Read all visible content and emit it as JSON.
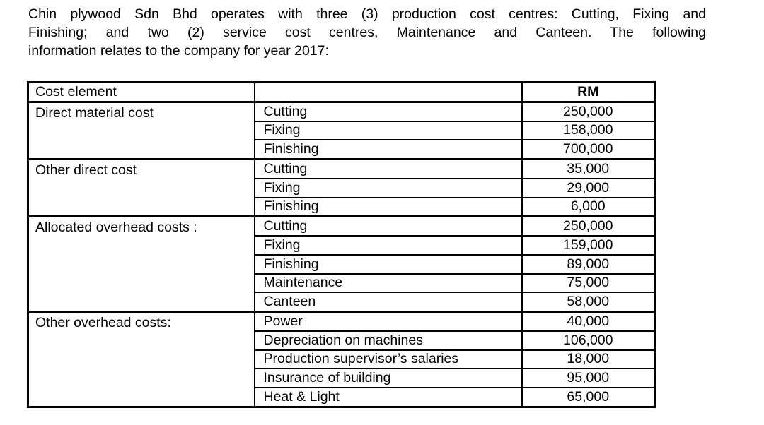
{
  "page": {
    "background_color": "#ffffff",
    "text_color": "#000000"
  },
  "intro": {
    "lines": [
      "Chin plywood Sdn Bhd operates with three (3) production cost centres: Cutting, Fixing and",
      "Finishing; and two (2) service cost centres, Maintenance and Canteen. The following",
      "information relates to the company for year 2017:"
    ]
  },
  "table": {
    "header": {
      "cost_element": "Cost element",
      "detail": "",
      "amount": "RM"
    },
    "groups": [
      {
        "label": "Direct material cost",
        "rows": [
          {
            "item": "Cutting",
            "rm": "250,000"
          },
          {
            "item": "Fixing",
            "rm": "158,000"
          },
          {
            "item": "Finishing",
            "rm": "700,000"
          }
        ]
      },
      {
        "label": "Other direct cost",
        "rows": [
          {
            "item": "Cutting",
            "rm": "35,000"
          },
          {
            "item": "Fixing",
            "rm": "29,000"
          },
          {
            "item": "Finishing",
            "rm": "6,000"
          }
        ]
      },
      {
        "label": "Allocated overhead costs :",
        "rows": [
          {
            "item": "Cutting",
            "rm": "250,000"
          },
          {
            "item": "Fixing",
            "rm": "159,000"
          },
          {
            "item": "Finishing",
            "rm": "89,000"
          },
          {
            "item": "Maintenance",
            "rm": "75,000"
          },
          {
            "item": "Canteen",
            "rm": "58,000"
          }
        ]
      },
      {
        "label": "Other overhead costs:",
        "rows": [
          {
            "item": "Power",
            "rm": "40,000"
          },
          {
            "item": "Depreciation on machines",
            "rm": "106,000"
          },
          {
            "item": "Production supervisor’s salaries",
            "rm": "18,000"
          },
          {
            "item": "Insurance of building",
            "rm": "95,000"
          },
          {
            "item": "Heat & Light",
            "rm": "65,000"
          }
        ]
      }
    ]
  }
}
